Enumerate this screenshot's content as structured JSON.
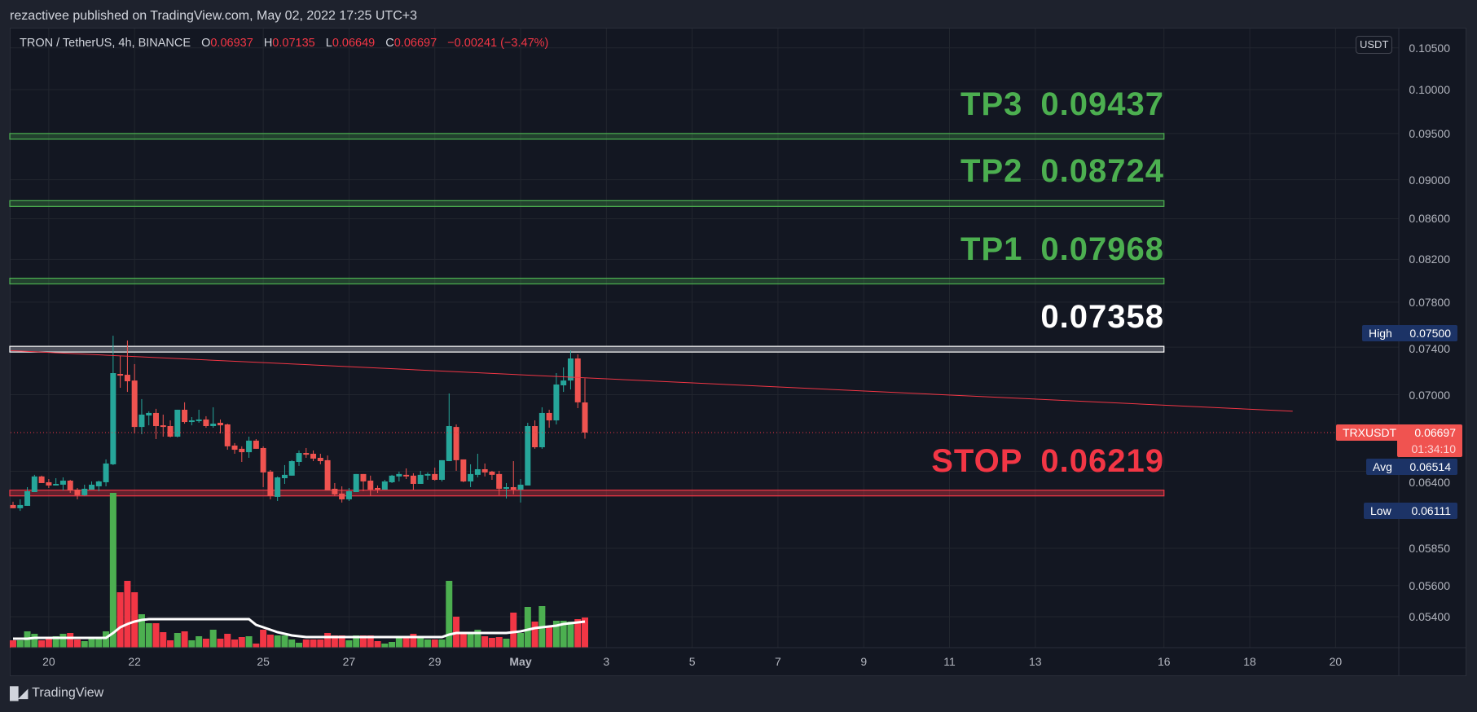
{
  "publish_line": "rezactivee published on TradingView.com, May 02, 2022 17:25 UTC+3",
  "legend": {
    "symbol": "TRON / TetherUS, 4h, BINANCE",
    "o_label": "O",
    "o": "0.06937",
    "h_label": "H",
    "h": "0.07135",
    "l_label": "L",
    "l": "0.06649",
    "c_label": "C",
    "c": "0.06697",
    "change": "−0.00241 (−3.47%)"
  },
  "colors": {
    "up_candle": "#26a69a",
    "down_candle": "#ef5350",
    "up_volume": "#4caf50",
    "down_volume": "#f23645",
    "target": "#4caf50",
    "stop": "#f23645",
    "entry": "#ffffff",
    "trendline": "#f23645",
    "volume_ma": "#ffffff",
    "stat_tag": "#1c3366",
    "last_price_tag": "#f05350"
  },
  "chart_data": {
    "type": "candlestick",
    "interval": "4h",
    "y_scale": "log",
    "grid": true,
    "price_axis": {
      "unit": "USDT",
      "ticks": [
        "0.10500",
        "0.10000",
        "0.09500",
        "0.09000",
        "0.08600",
        "0.08200",
        "0.07800",
        "0.07400",
        "0.07000",
        "0.06400",
        "0.05850",
        "0.05600",
        "0.05400"
      ]
    },
    "time_axis": {
      "ticks": [
        {
          "label": "20",
          "date": "2022-04-20T00:00"
        },
        {
          "label": "22",
          "date": "2022-04-22T00:00"
        },
        {
          "label": "25",
          "date": "2022-04-25T00:00"
        },
        {
          "label": "27",
          "date": "2022-04-27T00:00"
        },
        {
          "label": "29",
          "date": "2022-04-29T00:00"
        },
        {
          "label": "May",
          "date": "2022-05-01T00:00",
          "bold": true
        },
        {
          "label": "3",
          "date": "2022-05-03T00:00"
        },
        {
          "label": "5",
          "date": "2022-05-05T00:00"
        },
        {
          "label": "7",
          "date": "2022-05-07T00:00"
        },
        {
          "label": "9",
          "date": "2022-05-09T00:00"
        },
        {
          "label": "11",
          "date": "2022-05-11T00:00"
        },
        {
          "label": "13",
          "date": "2022-05-13T00:00"
        },
        {
          "label": "16",
          "date": "2022-05-16T00:00"
        },
        {
          "label": "18",
          "date": "2022-05-18T00:00"
        },
        {
          "label": "20",
          "date": "2022-05-20T00:00"
        }
      ]
    },
    "candle_columns": [
      "time",
      "open",
      "high",
      "low",
      "close",
      "volume_relative",
      "volume_ma_relative"
    ],
    "candles": [
      [
        "2022-04-19T04:00",
        0.06153,
        0.06177,
        0.0613,
        0.0613,
        9,
        11
      ],
      [
        "2022-04-19T08:00",
        0.0613,
        0.06194,
        0.06111,
        0.06153,
        9,
        11
      ],
      [
        "2022-04-19T12:00",
        0.06147,
        0.06283,
        0.06147,
        0.06253,
        20,
        11
      ],
      [
        "2022-04-19T16:00",
        0.06247,
        0.06374,
        0.06247,
        0.06362,
        17,
        12
      ],
      [
        "2022-04-19T20:00",
        0.06362,
        0.06368,
        0.06313,
        0.06313,
        9,
        12
      ],
      [
        "2022-04-20T00:00",
        0.06319,
        0.06343,
        0.06277,
        0.06295,
        11,
        12
      ],
      [
        "2022-04-20T04:00",
        0.06295,
        0.06349,
        0.06295,
        0.06307,
        14,
        12
      ],
      [
        "2022-04-20T08:00",
        0.06301,
        0.06355,
        0.06259,
        0.06331,
        17,
        12
      ],
      [
        "2022-04-20T12:00",
        0.06331,
        0.06337,
        0.06241,
        0.06259,
        18,
        12
      ],
      [
        "2022-04-20T16:00",
        0.06265,
        0.06277,
        0.06194,
        0.06224,
        10,
        12
      ],
      [
        "2022-04-20T20:00",
        0.06224,
        0.06301,
        0.06218,
        0.06271,
        8,
        12
      ],
      [
        "2022-04-21T00:00",
        0.06265,
        0.06325,
        0.06265,
        0.06301,
        11,
        12
      ],
      [
        "2022-04-21T04:00",
        0.06289,
        0.06331,
        0.06253,
        0.06325,
        12,
        12
      ],
      [
        "2022-04-21T08:00",
        0.06319,
        0.0649,
        0.06289,
        0.06459,
        20,
        12
      ],
      [
        "2022-04-21T12:00",
        0.06453,
        0.075,
        0.06447,
        0.07179,
        190,
        18
      ],
      [
        "2022-04-21T16:00",
        0.07172,
        0.07324,
        0.07057,
        0.07158,
        68,
        25
      ],
      [
        "2022-04-21T20:00",
        0.07165,
        0.07458,
        0.07023,
        0.07111,
        82,
        29
      ],
      [
        "2022-04-22T00:00",
        0.07117,
        0.07255,
        0.0669,
        0.06741,
        68,
        32
      ],
      [
        "2022-04-22T04:00",
        0.06741,
        0.06964,
        0.06684,
        0.06839,
        41,
        34
      ],
      [
        "2022-04-22T08:00",
        0.06832,
        0.06865,
        0.06754,
        0.06852,
        30,
        35
      ],
      [
        "2022-04-22T12:00",
        0.06852,
        0.06885,
        0.06646,
        0.06748,
        30,
        35
      ],
      [
        "2022-04-22T16:00",
        0.06754,
        0.06839,
        0.06665,
        0.06741,
        19,
        35
      ],
      [
        "2022-04-22T20:00",
        0.06748,
        0.06793,
        0.06659,
        0.06665,
        9,
        35
      ],
      [
        "2022-04-23T00:00",
        0.06665,
        0.06878,
        0.06659,
        0.06878,
        18,
        35
      ],
      [
        "2022-04-23T04:00",
        0.06878,
        0.06938,
        0.06767,
        0.0678,
        20,
        35
      ],
      [
        "2022-04-23T08:00",
        0.0678,
        0.06819,
        0.06754,
        0.06793,
        9,
        35
      ],
      [
        "2022-04-23T12:00",
        0.06787,
        0.06878,
        0.06774,
        0.068,
        14,
        35
      ],
      [
        "2022-04-23T16:00",
        0.068,
        0.06826,
        0.06735,
        0.06748,
        11,
        35
      ],
      [
        "2022-04-23T20:00",
        0.06748,
        0.06898,
        0.06735,
        0.06767,
        22,
        35
      ],
      [
        "2022-04-24T00:00",
        0.06774,
        0.068,
        0.0669,
        0.06754,
        11,
        35
      ],
      [
        "2022-04-24T04:00",
        0.06761,
        0.06767,
        0.06564,
        0.0659,
        17,
        35
      ],
      [
        "2022-04-24T08:00",
        0.06596,
        0.06615,
        0.06533,
        0.06564,
        10,
        35
      ],
      [
        "2022-04-24T12:00",
        0.06571,
        0.0659,
        0.06471,
        0.06545,
        13,
        35
      ],
      [
        "2022-04-24T16:00",
        0.06545,
        0.06665,
        0.06502,
        0.06634,
        14,
        35
      ],
      [
        "2022-04-24T20:00",
        0.06634,
        0.06646,
        0.06571,
        0.06571,
        5,
        28
      ],
      [
        "2022-04-25T00:00",
        0.06577,
        0.0659,
        0.06283,
        0.06392,
        22,
        25
      ],
      [
        "2022-04-25T04:00",
        0.06398,
        0.0641,
        0.06194,
        0.06218,
        16,
        22
      ],
      [
        "2022-04-25T08:00",
        0.06212,
        0.06362,
        0.06182,
        0.06355,
        15,
        19
      ],
      [
        "2022-04-25T12:00",
        0.06349,
        0.06447,
        0.06307,
        0.06374,
        15,
        17
      ],
      [
        "2022-04-25T16:00",
        0.06368,
        0.06484,
        0.06368,
        0.06477,
        10,
        15
      ],
      [
        "2022-04-25T20:00",
        0.06471,
        0.06558,
        0.06441,
        0.06539,
        6,
        14
      ],
      [
        "2022-04-26T00:00",
        0.06539,
        0.06577,
        0.06502,
        0.06526,
        10,
        13
      ],
      [
        "2022-04-26T04:00",
        0.06533,
        0.06558,
        0.06477,
        0.06496,
        10,
        13
      ],
      [
        "2022-04-26T08:00",
        0.06502,
        0.06533,
        0.06453,
        0.06477,
        10,
        13
      ],
      [
        "2022-04-26T12:00",
        0.06484,
        0.0652,
        0.06259,
        0.06259,
        18,
        13
      ],
      [
        "2022-04-26T16:00",
        0.06271,
        0.06313,
        0.06218,
        0.0623,
        15,
        13
      ],
      [
        "2022-04-26T20:00",
        0.06236,
        0.06289,
        0.06171,
        0.06194,
        15,
        13
      ],
      [
        "2022-04-27T00:00",
        0.06194,
        0.06277,
        0.06182,
        0.06253,
        9,
        13
      ],
      [
        "2022-04-27T04:00",
        0.06247,
        0.0638,
        0.06247,
        0.0638,
        15,
        13
      ],
      [
        "2022-04-27T08:00",
        0.0638,
        0.0638,
        0.06253,
        0.06325,
        15,
        13
      ],
      [
        "2022-04-27T12:00",
        0.06331,
        0.06368,
        0.06218,
        0.06265,
        15,
        13
      ],
      [
        "2022-04-27T16:00",
        0.06277,
        0.06295,
        0.06241,
        0.06265,
        8,
        13
      ],
      [
        "2022-04-27T20:00",
        0.06265,
        0.06337,
        0.06265,
        0.06325,
        5,
        13
      ],
      [
        "2022-04-28T00:00",
        0.06319,
        0.06374,
        0.06313,
        0.06368,
        7,
        13
      ],
      [
        "2022-04-28T04:00",
        0.06362,
        0.06398,
        0.06325,
        0.0638,
        12,
        13
      ],
      [
        "2022-04-28T08:00",
        0.06374,
        0.06422,
        0.06343,
        0.06362,
        13,
        13
      ],
      [
        "2022-04-28T12:00",
        0.06368,
        0.06386,
        0.06265,
        0.06307,
        17,
        13
      ],
      [
        "2022-04-28T16:00",
        0.06307,
        0.06404,
        0.06307,
        0.06374,
        13,
        13
      ],
      [
        "2022-04-28T20:00",
        0.06368,
        0.06392,
        0.06337,
        0.0638,
        10,
        13
      ],
      [
        "2022-04-29T00:00",
        0.0638,
        0.06428,
        0.06331,
        0.06337,
        10,
        13
      ],
      [
        "2022-04-29T04:00",
        0.06337,
        0.06484,
        0.06325,
        0.06484,
        10,
        13
      ],
      [
        "2022-04-29T08:00",
        0.06477,
        0.0701,
        0.06477,
        0.06748,
        82,
        16
      ],
      [
        "2022-04-29T12:00",
        0.06741,
        0.06761,
        0.06404,
        0.06484,
        38,
        18
      ],
      [
        "2022-04-29T16:00",
        0.0649,
        0.0649,
        0.06319,
        0.06325,
        18,
        18
      ],
      [
        "2022-04-29T20:00",
        0.06325,
        0.06453,
        0.06283,
        0.0638,
        17,
        18
      ],
      [
        "2022-04-30T00:00",
        0.06374,
        0.06533,
        0.06355,
        0.06416,
        22,
        18
      ],
      [
        "2022-04-30T04:00",
        0.06416,
        0.06459,
        0.06362,
        0.06392,
        14,
        18
      ],
      [
        "2022-04-30T08:00",
        0.06398,
        0.06404,
        0.06337,
        0.06374,
        12,
        18
      ],
      [
        "2022-04-30T12:00",
        0.0638,
        0.06404,
        0.06224,
        0.06271,
        13,
        18
      ],
      [
        "2022-04-30T16:00",
        0.06271,
        0.06313,
        0.062,
        0.06283,
        11,
        18
      ],
      [
        "2022-04-30T20:00",
        0.06283,
        0.06477,
        0.0623,
        0.06265,
        43,
        19
      ],
      [
        "2022-05-01T00:00",
        0.06265,
        0.06343,
        0.06171,
        0.06301,
        18,
        20
      ],
      [
        "2022-05-01T04:00",
        0.06295,
        0.06774,
        0.06295,
        0.06748,
        50,
        22
      ],
      [
        "2022-05-01T08:00",
        0.06748,
        0.06793,
        0.06571,
        0.06583,
        32,
        24
      ],
      [
        "2022-05-01T12:00",
        0.06583,
        0.06898,
        0.06571,
        0.06852,
        51,
        25
      ],
      [
        "2022-05-01T16:00",
        0.06852,
        0.06878,
        0.06735,
        0.06793,
        26,
        26
      ],
      [
        "2022-05-01T20:00",
        0.06793,
        0.07179,
        0.06761,
        0.07084,
        33,
        27
      ],
      [
        "2022-05-02T00:00",
        0.07077,
        0.07227,
        0.07023,
        0.07117,
        33,
        29
      ],
      [
        "2022-05-02T04:00",
        0.07117,
        0.07373,
        0.07043,
        0.07303,
        32,
        30
      ],
      [
        "2022-05-02T08:00",
        0.07303,
        0.07338,
        0.06891,
        0.06938,
        35,
        31
      ],
      [
        "2022-05-02T12:00",
        0.06937,
        0.07135,
        0.06649,
        0.06697,
        37,
        32
      ]
    ],
    "trendline": {
      "start": {
        "time": "2022-04-19T04:00",
        "price": 0.0737
      },
      "end": {
        "time": "2022-05-19T00:00",
        "price": 0.06866
      }
    },
    "levels": [
      {
        "label": "TP3",
        "value": "0.09437",
        "price": 0.09437,
        "kind": "target"
      },
      {
        "label": "TP2",
        "value": "0.08724",
        "price": 0.08724,
        "kind": "target"
      },
      {
        "label": "TP1",
        "value": "0.07968",
        "price": 0.07968,
        "kind": "target"
      },
      {
        "label": "",
        "value": "0.07358",
        "price": 0.07358,
        "kind": "entry"
      },
      {
        "label": "STOP",
        "value": "0.06219",
        "price": 0.06219,
        "kind": "stop"
      }
    ],
    "levels_end_time": "2022-05-16T00:00",
    "stats": {
      "high": {
        "label": "High",
        "value": "0.07500"
      },
      "avg": {
        "label": "Avg",
        "value": "0.06514"
      },
      "low": {
        "label": "Low",
        "value": "0.06111"
      }
    },
    "last_price": {
      "symbol": "TRXUSDT",
      "value": "0.06697",
      "price": 0.06697,
      "countdown": "01:34:10"
    }
  },
  "footer": {
    "logo_mark": "17",
    "brand": "TradingView"
  }
}
